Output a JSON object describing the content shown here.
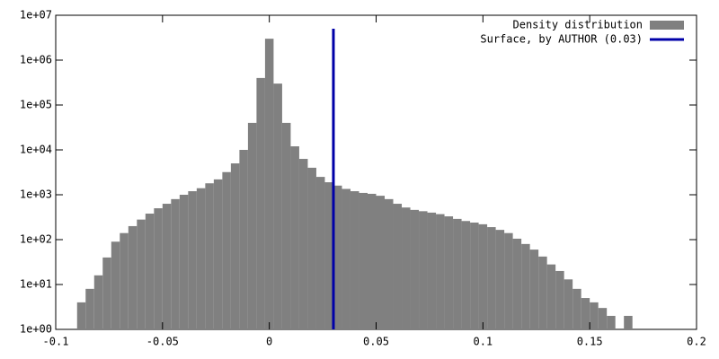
{
  "chart_data": {
    "type": "histogram",
    "log_y": true,
    "bins": [
      -0.09,
      -0.086,
      -0.082,
      -0.078,
      -0.074,
      -0.07,
      -0.066,
      -0.062,
      -0.058,
      -0.054,
      -0.05,
      -0.046,
      -0.042,
      -0.038,
      -0.034,
      -0.03,
      -0.026,
      -0.022,
      -0.018,
      -0.014,
      -0.01,
      -0.006,
      -0.002,
      0.002,
      0.006,
      0.01,
      0.014,
      0.018,
      0.022,
      0.026,
      0.03,
      0.034,
      0.038,
      0.042,
      0.046,
      0.05,
      0.054,
      0.058,
      0.062,
      0.066,
      0.07,
      0.074,
      0.078,
      0.082,
      0.086,
      0.09,
      0.094,
      0.098,
      0.102,
      0.106,
      0.11,
      0.114,
      0.118,
      0.122,
      0.126,
      0.13,
      0.134,
      0.138,
      0.142,
      0.146,
      0.15,
      0.154,
      0.158,
      0.162,
      0.166,
      0.17
    ],
    "series": [
      {
        "name": "Density distribution",
        "color": "#808080",
        "values": [
          4,
          8,
          16,
          40,
          90,
          140,
          200,
          280,
          380,
          500,
          630,
          800,
          1000,
          1200,
          1400,
          1800,
          2200,
          3200,
          5000,
          10000,
          40000,
          400000,
          3000000,
          300000,
          40000,
          12000,
          6300,
          4000,
          2500,
          1900,
          1600,
          1350,
          1200,
          1100,
          1050,
          950,
          800,
          630,
          520,
          460,
          430,
          400,
          370,
          330,
          290,
          260,
          240,
          220,
          190,
          165,
          140,
          105,
          80,
          60,
          42,
          28,
          20,
          13,
          8,
          5,
          4,
          3,
          2,
          1,
          2
        ]
      },
      {
        "name": "Surface, by AUTHOR (0.03)",
        "color": "#0000a8",
        "x": 0.03,
        "y": [
          1,
          5000000
        ]
      }
    ],
    "xlim": [
      -0.1,
      0.2
    ],
    "xticks": [
      -0.1,
      -0.05,
      0,
      0.05,
      0.1,
      0.15,
      0.2
    ],
    "ylim": [
      1,
      10000000
    ],
    "yticks": [
      {
        "value": 1,
        "label": "1e+00"
      },
      {
        "value": 10,
        "label": "1e+01"
      },
      {
        "value": 100,
        "label": "1e+02"
      },
      {
        "value": 1000,
        "label": "1e+03"
      },
      {
        "value": 10000,
        "label": "1e+04"
      },
      {
        "value": 100000,
        "label": "1e+05"
      },
      {
        "value": 1000000,
        "label": "1e+06"
      },
      {
        "value": 10000000,
        "label": "1e+07"
      }
    ],
    "legend": "upper right"
  }
}
